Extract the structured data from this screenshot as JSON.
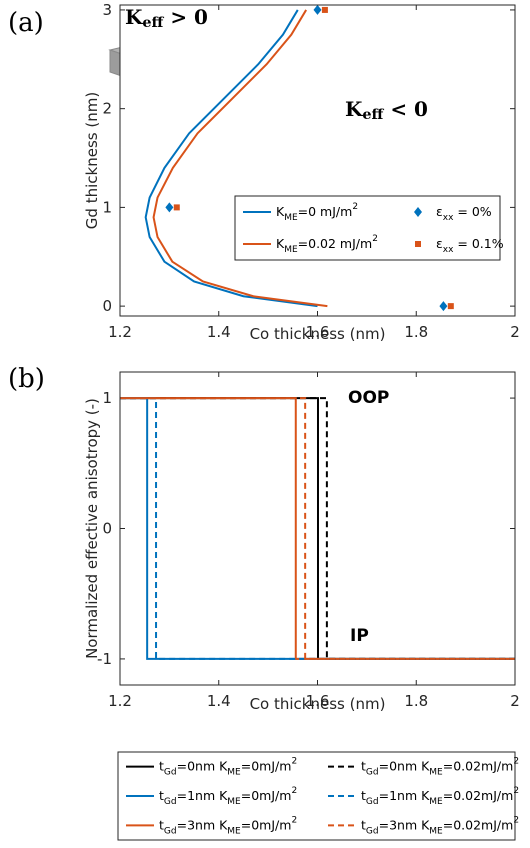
{
  "chart_data": [
    {
      "type": "line",
      "panel_label": "(a)",
      "x_label": "Co thickness (nm)",
      "y_label": "Gd thickness (nm)",
      "xlim": [
        1.2,
        2
      ],
      "xticks": [
        1.2,
        1.4,
        1.6,
        1.8,
        2
      ],
      "ylim": [
        -0.1,
        3.05
      ],
      "yticks": [
        0,
        1,
        2,
        3
      ],
      "annotations": [
        "K_{eff} > 0",
        "K_{eff} < 0"
      ],
      "series": [
        {
          "name": "K_{ME}=0 mJ/m^{2}",
          "color": "#0072BD",
          "kind": "line",
          "x": [
            1.6,
            1.45,
            1.35,
            1.29,
            1.26,
            1.252,
            1.26,
            1.29,
            1.34,
            1.41,
            1.48,
            1.53,
            1.56
          ],
          "values": [
            0,
            0.1,
            0.25,
            0.45,
            0.7,
            0.9,
            1.1,
            1.4,
            1.75,
            2.1,
            2.45,
            2.75,
            3
          ]
        },
        {
          "name": "K_{ME}=0.02 mJ/m^{2}",
          "color": "#D95319",
          "kind": "line",
          "x": [
            1.62,
            1.47,
            1.368,
            1.306,
            1.276,
            1.268,
            1.276,
            1.307,
            1.357,
            1.427,
            1.497,
            1.547,
            1.577
          ],
          "values": [
            0,
            0.1,
            0.25,
            0.45,
            0.7,
            0.9,
            1.1,
            1.4,
            1.75,
            2.1,
            2.45,
            2.75,
            3
          ]
        },
        {
          "name": "ε_{xx} = 0%",
          "color": "#0072BD",
          "kind": "scatter",
          "marker": "diamond",
          "x": [
            1.6,
            1.3,
            1.855
          ],
          "values": [
            3,
            1,
            0
          ]
        },
        {
          "name": "ε_{xx} = 0.1%",
          "color": "#D95319",
          "kind": "scatter",
          "marker": "square",
          "x": [
            1.615,
            1.315,
            1.87
          ],
          "values": [
            3,
            1,
            0
          ]
        }
      ]
    },
    {
      "type": "line",
      "panel_label": "(b)",
      "x_label": "Co thickness (nm)",
      "y_label": "Normalized effective anisotropy (-)",
      "xlim": [
        1.2,
        2
      ],
      "xticks": [
        1.2,
        1.4,
        1.6,
        1.8,
        2
      ],
      "ylim": [
        -1.2,
        1.2
      ],
      "yticks": [
        -1,
        0,
        1
      ],
      "annotations": [
        "OOP",
        "IP"
      ],
      "series": [
        {
          "name": "t_{Gd}=0nm K_{ME}=0mJ/m^{2}",
          "color": "#000000",
          "kind": "line",
          "dashed": false,
          "x": [
            1.2,
            1.601,
            1.601,
            2
          ],
          "values": [
            1,
            1,
            -1,
            -1
          ]
        },
        {
          "name": "t_{Gd}=1nm K_{ME}=0mJ/m^{2}",
          "color": "#0072BD",
          "kind": "line",
          "dashed": false,
          "x": [
            1.2,
            1.255,
            1.255,
            2
          ],
          "values": [
            1,
            1,
            -1,
            -1
          ]
        },
        {
          "name": "t_{Gd}=3nm K_{ME}=0mJ/m^{2}",
          "color": "#D95319",
          "kind": "line",
          "dashed": false,
          "x": [
            1.2,
            1.556,
            1.556,
            2
          ],
          "values": [
            1,
            1,
            -1,
            -1
          ]
        },
        {
          "name": "t_{Gd}=0nm K_{ME}=0.02mJ/m^{2}",
          "color": "#000000",
          "kind": "line",
          "dashed": true,
          "x": [
            1.2,
            1.619,
            1.619,
            2
          ],
          "values": [
            1,
            1,
            -1,
            -1
          ]
        },
        {
          "name": "t_{Gd}=1nm K_{ME}=0.02mJ/m^{2}",
          "color": "#0072BD",
          "kind": "line",
          "dashed": true,
          "x": [
            1.2,
            1.273,
            1.273,
            2
          ],
          "values": [
            1,
            1,
            -1,
            -1
          ]
        },
        {
          "name": "t_{Gd}=3nm K_{ME}=0.02mJ/m^{2}",
          "color": "#D95319",
          "kind": "line",
          "dashed": true,
          "x": [
            1.2,
            1.575,
            1.575,
            2
          ],
          "values": [
            1,
            1,
            -1,
            -1
          ]
        }
      ]
    }
  ]
}
